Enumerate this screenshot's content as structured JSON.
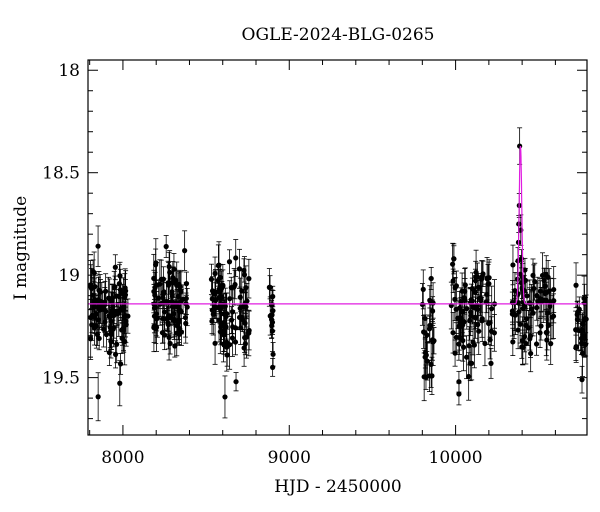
{
  "chart_data": {
    "type": "scatter",
    "title": "OGLE-2024-BLG-0265",
    "xlabel": "HJD - 2450000",
    "ylabel": "I magnitude",
    "xlim": [
      7790,
      10790
    ],
    "ylim": [
      19.78,
      17.95
    ],
    "y_inverted": true,
    "x_ticks": [
      8000,
      9000,
      10000
    ],
    "x_tick_labels": [
      "8000",
      "9000",
      "10000"
    ],
    "y_ticks": [
      18,
      18.5,
      19,
      19.5
    ],
    "y_tick_labels": [
      "18",
      "18.5",
      "19",
      "19.5"
    ],
    "grid": false,
    "colors": {
      "data": "#000000",
      "model": "#e01ee0",
      "frame": "#000000"
    },
    "model_line": {
      "baseline_mag": 19.14,
      "peak_t": 10390,
      "peak_mag": 18.37,
      "half_width": 12
    },
    "seasons": [
      {
        "start": 7800,
        "end": 8030,
        "n": 95,
        "mean": 19.17,
        "sd": 0.11
      },
      {
        "start": 8180,
        "end": 8390,
        "n": 85,
        "mean": 19.14,
        "sd": 0.11
      },
      {
        "start": 8530,
        "end": 8760,
        "n": 85,
        "mean": 19.17,
        "sd": 0.12
      },
      {
        "start": 8880,
        "end": 8910,
        "n": 12,
        "mean": 19.15,
        "sd": 0.1
      },
      {
        "start": 9800,
        "end": 9870,
        "n": 25,
        "mean": 19.26,
        "sd": 0.12
      },
      {
        "start": 9970,
        "end": 10240,
        "n": 85,
        "mean": 19.18,
        "sd": 0.13
      },
      {
        "start": 10340,
        "end": 10590,
        "n": 75,
        "mean": 19.16,
        "sd": 0.12
      },
      {
        "start": 10720,
        "end": 10790,
        "n": 25,
        "mean": 19.24,
        "sd": 0.12
      }
    ],
    "highlight_points": [
      {
        "x": 10385,
        "y": 18.37
      },
      {
        "x": 10383,
        "y": 18.66
      },
      {
        "x": 10380,
        "y": 18.75
      },
      {
        "x": 10378,
        "y": 18.84
      },
      {
        "x": 10375,
        "y": 18.93
      },
      {
        "x": 10392,
        "y": 18.78
      },
      {
        "x": 10396,
        "y": 18.92
      },
      {
        "x": 10372,
        "y": 19.02
      },
      {
        "x": 10405,
        "y": 19.01
      },
      {
        "x": 9870,
        "y": 19.32
      },
      {
        "x": 10020,
        "y": 19.52
      },
      {
        "x": 10020,
        "y": 19.58
      },
      {
        "x": 10760,
        "y": 19.51
      },
      {
        "x": 8680,
        "y": 19.52
      },
      {
        "x": 8900,
        "y": 19.45
      },
      {
        "x": 8260,
        "y": 18.86
      }
    ]
  }
}
